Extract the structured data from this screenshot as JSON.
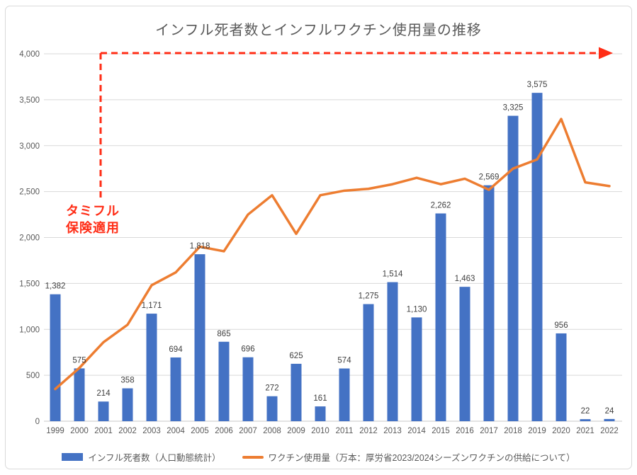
{
  "chart": {
    "title": "インフル死者数とインフルワクチン使用量の推移",
    "annotation": {
      "line1": "タミフル",
      "line2": "保険適用"
    },
    "legend_labels": {
      "deaths": "インフル死者数（人口動態統計）",
      "vaccine": "ワクチン使用量（万本：厚労省2023/2024シーズンワクチンの供給について）"
    },
    "colors": {
      "bar": "#4472C4",
      "line": "#ED7D31",
      "annotation": "#FF2D16",
      "grid": "#D9D9D9",
      "axis_line": "#C9C9C9",
      "axis_text": "#595959",
      "label_text": "#404040",
      "title_text": "#595959"
    }
  },
  "chart_data": {
    "type": "combo",
    "title": "インフル死者数とインフルワクチン使用量の推移",
    "categories": [
      1999,
      2000,
      2001,
      2002,
      2003,
      2004,
      2005,
      2006,
      2007,
      2008,
      2009,
      2010,
      2011,
      2012,
      2013,
      2014,
      2015,
      2016,
      2017,
      2018,
      2019,
      2020,
      2021,
      2022
    ],
    "series": [
      {
        "name": "インフル死者数（人口動態統計）",
        "type": "bar",
        "values": [
          1382,
          575,
          214,
          358,
          1171,
          694,
          1818,
          865,
          696,
          272,
          625,
          161,
          574,
          1275,
          1514,
          1130,
          2262,
          1463,
          2569,
          3325,
          3575,
          956,
          22,
          24
        ],
        "data_labels": true
      },
      {
        "name": "ワクチン使用量（万本：厚労省2023/2024シーズンワクチンの供給について）",
        "type": "line",
        "values": [
          350,
          580,
          860,
          1050,
          1480,
          1620,
          1900,
          1850,
          2250,
          2460,
          2040,
          2460,
          2510,
          2530,
          2580,
          2650,
          2580,
          2640,
          2520,
          2750,
          2850,
          3290,
          2600,
          2560
        ],
        "data_labels": false
      }
    ],
    "xlabel": "",
    "ylabel": "",
    "ylim": [
      0,
      4000
    ],
    "yticks": [
      0,
      500,
      1000,
      1500,
      2000,
      2500,
      3000,
      3500,
      4000
    ],
    "grid": true,
    "legend_position": "bottom",
    "annotations": [
      {
        "text": "タミフル保険適用",
        "at_year": 2001,
        "style": "red-dashed-arrow-to-right-at-4000"
      }
    ]
  }
}
